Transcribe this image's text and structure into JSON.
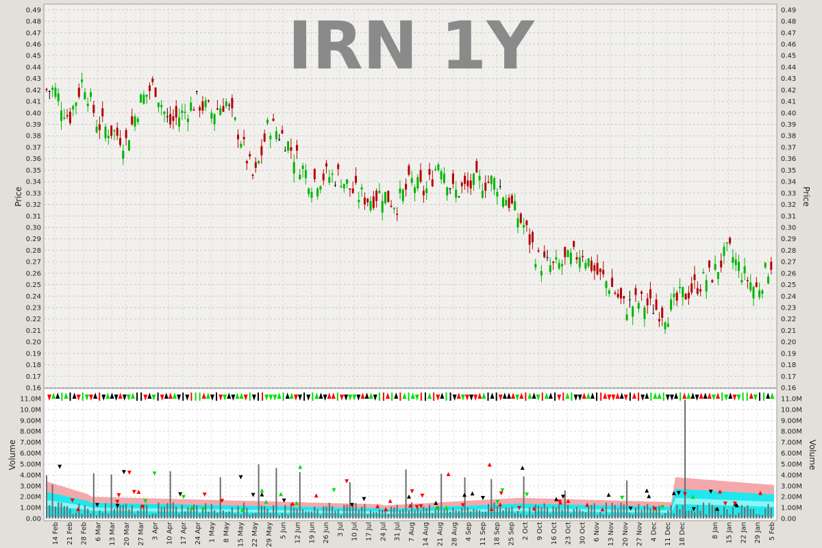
{
  "chart_data": [
    {
      "type": "candlestick",
      "title": "IRN 1Y",
      "ylabel": "Price",
      "ylim": [
        0.16,
        0.495
      ],
      "y_ticks": [
        "0.16",
        "0.17",
        "0.18",
        "0.19",
        "0.20",
        "0.21",
        "0.22",
        "0.23",
        "0.24",
        "0.25",
        "0.26",
        "0.27",
        "0.28",
        "0.29",
        "0.30",
        "0.31",
        "0.32",
        "0.33",
        "0.34",
        "0.35",
        "0.36",
        "0.37",
        "0.38",
        "0.39",
        "0.40",
        "0.41",
        "0.42",
        "0.43",
        "0.44",
        "0.45",
        "0.46",
        "0.47",
        "0.48",
        "0.49"
      ],
      "grid": true,
      "colors": {
        "up": "#00b400",
        "down": "#b40000",
        "flat": "#000000"
      },
      "close_anchors": [
        {
          "date": "14 Feb",
          "close": 0.42
        },
        {
          "date": "21 Feb",
          "close": 0.395
        },
        {
          "date": "28 Feb",
          "close": 0.43
        },
        {
          "date": "6 Mar",
          "close": 0.39
        },
        {
          "date": "13 Mar",
          "close": 0.385
        },
        {
          "date": "20 Mar",
          "close": 0.375
        },
        {
          "date": "27 Mar",
          "close": 0.41
        },
        {
          "date": "3 Apr",
          "close": 0.425
        },
        {
          "date": "10 Apr",
          "close": 0.39
        },
        {
          "date": "17 Apr",
          "close": 0.4
        },
        {
          "date": "24 Apr",
          "close": 0.41
        },
        {
          "date": "1 May",
          "close": 0.4
        },
        {
          "date": "8 May",
          "close": 0.41
        },
        {
          "date": "15 May",
          "close": 0.38
        },
        {
          "date": "22 May",
          "close": 0.34
        },
        {
          "date": "29 May",
          "close": 0.39
        },
        {
          "date": "5 Jun",
          "close": 0.38
        },
        {
          "date": "12 Jun",
          "close": 0.36
        },
        {
          "date": "19 Jun",
          "close": 0.34
        },
        {
          "date": "26 Jun",
          "close": 0.345
        },
        {
          "date": "3 Jul",
          "close": 0.345
        },
        {
          "date": "10 Jul",
          "close": 0.33
        },
        {
          "date": "17 Jul",
          "close": 0.325
        },
        {
          "date": "24 Jul",
          "close": 0.33
        },
        {
          "date": "31 Jul",
          "close": 0.32
        },
        {
          "date": "7 Aug",
          "close": 0.34
        },
        {
          "date": "14 Aug",
          "close": 0.33
        },
        {
          "date": "21 Aug",
          "close": 0.36
        },
        {
          "date": "28 Aug",
          "close": 0.33
        },
        {
          "date": "4 Sep",
          "close": 0.335
        },
        {
          "date": "11 Sep",
          "close": 0.34
        },
        {
          "date": "18 Sep",
          "close": 0.34
        },
        {
          "date": "25 Sep",
          "close": 0.32
        },
        {
          "date": "2 Oct",
          "close": 0.3
        },
        {
          "date": "9 Oct",
          "close": 0.27
        },
        {
          "date": "16 Oct",
          "close": 0.265
        },
        {
          "date": "23 Oct",
          "close": 0.27
        },
        {
          "date": "30 Oct",
          "close": 0.28
        },
        {
          "date": "6 Nov",
          "close": 0.26
        },
        {
          "date": "13 Nov",
          "close": 0.25
        },
        {
          "date": "20 Nov",
          "close": 0.23
        },
        {
          "date": "27 Nov",
          "close": 0.235
        },
        {
          "date": "4 Dec",
          "close": 0.23
        },
        {
          "date": "11 Dec",
          "close": 0.225
        },
        {
          "date": "18 Dec",
          "close": 0.24
        },
        {
          "date": "8 Jan",
          "close": 0.26
        },
        {
          "date": "15 Jan",
          "close": 0.28
        },
        {
          "date": "22 Jan",
          "close": 0.26
        },
        {
          "date": "29 Jan",
          "close": 0.245
        },
        {
          "date": "5 Feb",
          "close": 0.27
        }
      ]
    },
    {
      "type": "bar",
      "ylabel": "Volume",
      "ylim": [
        0,
        11.0
      ],
      "y_ticks": [
        "0.00",
        "1.00M",
        "2.00M",
        "3.00M",
        "4.00M",
        "5.00M",
        "6.00M",
        "7.00M",
        "8.00M",
        "9.00M",
        "10.0M",
        "11.0M"
      ],
      "unit": "M shares",
      "grid": true,
      "bands": {
        "outer": "#f4a8ac",
        "inner": "#1ee8ee",
        "mid": "#8ef4f4"
      }
    }
  ],
  "x_axis": {
    "labels": [
      "14 Feb",
      "21 Feb",
      "28 Feb",
      "6 Mar",
      "13 Mar",
      "20 Mar",
      "27 Mar",
      "3 Apr",
      "10 Apr",
      "17 Apr",
      "24 Apr",
      "1 May",
      "8 May",
      "15 May",
      "22 May",
      "29 May",
      "5 Jun",
      "12 Jun",
      "19 Jun",
      "26 Jun",
      "3 Jul",
      "10 Jul",
      "17 Jul",
      "24 Jul",
      "31 Jul",
      "7 Aug",
      "14 Aug",
      "21 Aug",
      "28 Aug",
      "4 Sep",
      "11 Sep",
      "18 Sep",
      "25 Sep",
      "2 Oct",
      "9 Oct",
      "16 Oct",
      "23 Oct",
      "30 Oct",
      "6 Nov",
      "13 Nov",
      "20 Nov",
      "27 Nov",
      "4 Dec",
      "11 Dec",
      "18 Dec",
      "8 Jan",
      "15 Jan",
      "22 Jan",
      "29 Jan",
      "5 Feb"
    ]
  }
}
